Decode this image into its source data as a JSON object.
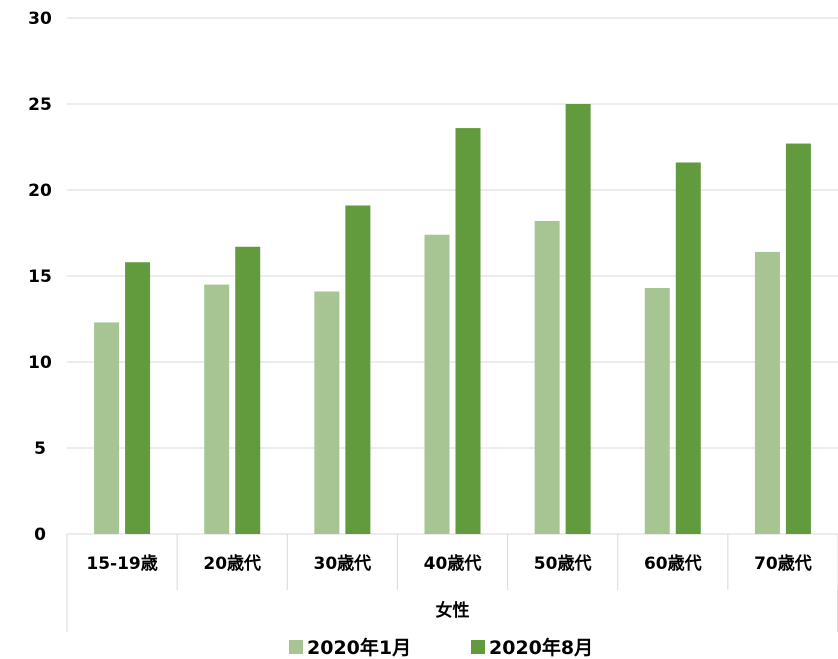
{
  "chart_data": {
    "type": "bar",
    "categories": [
      "15-19歳",
      "20歳代",
      "30歳代",
      "40歳代",
      "50歳代",
      "60歳代",
      "70歳代"
    ],
    "group_label": "女性",
    "series": [
      {
        "name": "2020年1月",
        "color": "#a6c592",
        "values": [
          12.3,
          14.5,
          14.1,
          17.4,
          18.2,
          14.3,
          16.4
        ]
      },
      {
        "name": "2020年8月",
        "color": "#629a3e",
        "values": [
          15.8,
          16.7,
          19.1,
          23.6,
          25.0,
          21.6,
          22.7
        ]
      }
    ],
    "ylim": [
      0,
      30
    ],
    "yticks": [
      0,
      5,
      10,
      15,
      20,
      25,
      30
    ],
    "grid": true,
    "legend_position": "bottom",
    "title": "",
    "xlabel": "",
    "ylabel": ""
  }
}
